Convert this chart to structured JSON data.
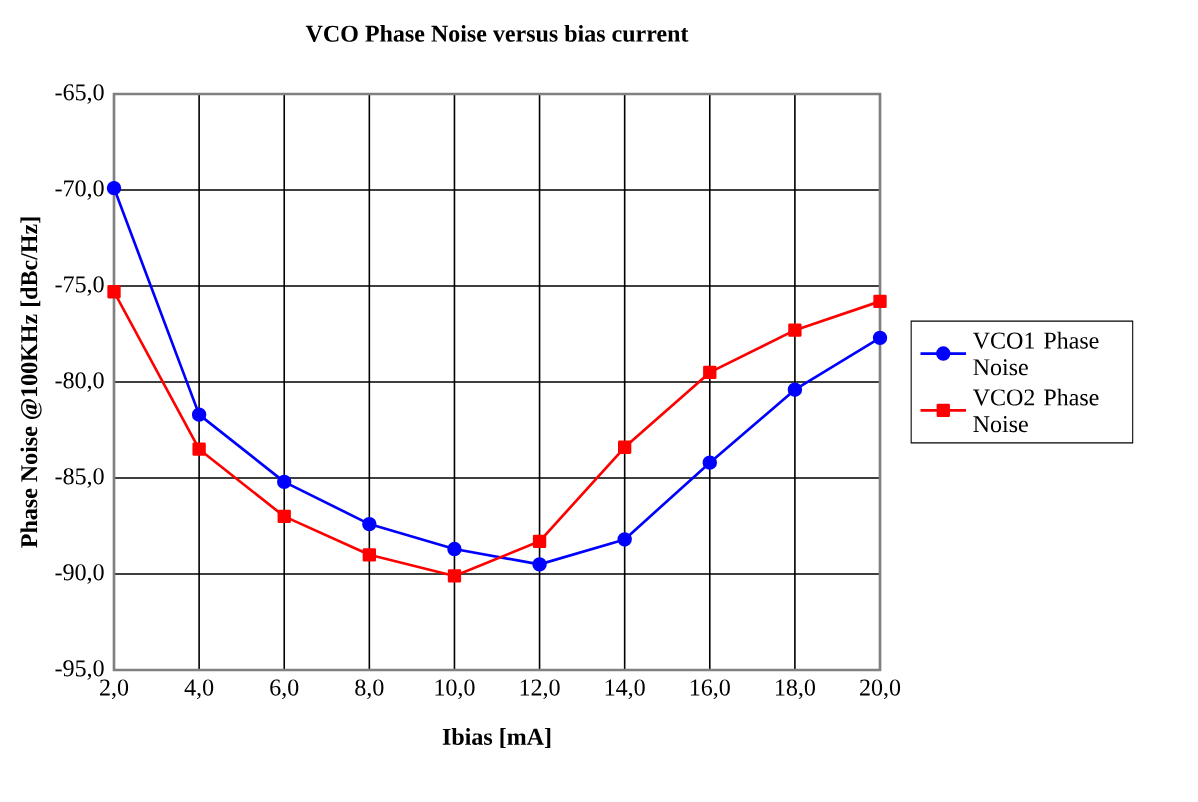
{
  "chart_data": {
    "type": "line",
    "title": "VCO Phase Noise versus bias current",
    "xlabel": "Ibias [mA]",
    "ylabel": "Phase Noise @100KHz [dBc/Hz]",
    "x": [
      2,
      4,
      6,
      8,
      10,
      12,
      14,
      16,
      18,
      20
    ],
    "series": [
      {
        "name": "VCO1 Phase Noise",
        "color": "#0000ff",
        "marker": "circle",
        "values": [
          -69.9,
          -81.7,
          -85.2,
          -87.4,
          -88.7,
          -89.5,
          -88.2,
          -84.2,
          -80.4,
          -77.7
        ]
      },
      {
        "name": "VCO2 Phase Noise",
        "color": "#ff0000",
        "marker": "square",
        "values": [
          -75.3,
          -83.5,
          -87.0,
          -89.0,
          -90.1,
          -88.3,
          -83.4,
          -79.5,
          -77.3,
          -75.8
        ]
      }
    ],
    "xlim": [
      2,
      20
    ],
    "xticks": [
      {
        "value": 2,
        "label": "2,0"
      },
      {
        "value": 4,
        "label": "4,0"
      },
      {
        "value": 6,
        "label": "6,0"
      },
      {
        "value": 8,
        "label": "8,0"
      },
      {
        "value": 10,
        "label": "10,0"
      },
      {
        "value": 12,
        "label": "12,0"
      },
      {
        "value": 14,
        "label": "14,0"
      },
      {
        "value": 16,
        "label": "16,0"
      },
      {
        "value": 18,
        "label": "18,0"
      },
      {
        "value": 20,
        "label": "20,0"
      }
    ],
    "ylim": [
      -95,
      -65
    ],
    "yticks": [
      {
        "value": -95,
        "label": "-95,0"
      },
      {
        "value": -90,
        "label": "-90,0"
      },
      {
        "value": -85,
        "label": "-85,0"
      },
      {
        "value": -80,
        "label": "-80,0"
      },
      {
        "value": -75,
        "label": "-75,0"
      },
      {
        "value": -70,
        "label": "-70,0"
      },
      {
        "value": -65,
        "label": "-65,0"
      }
    ],
    "grid": true,
    "legend": "right",
    "line_style": "solid"
  }
}
